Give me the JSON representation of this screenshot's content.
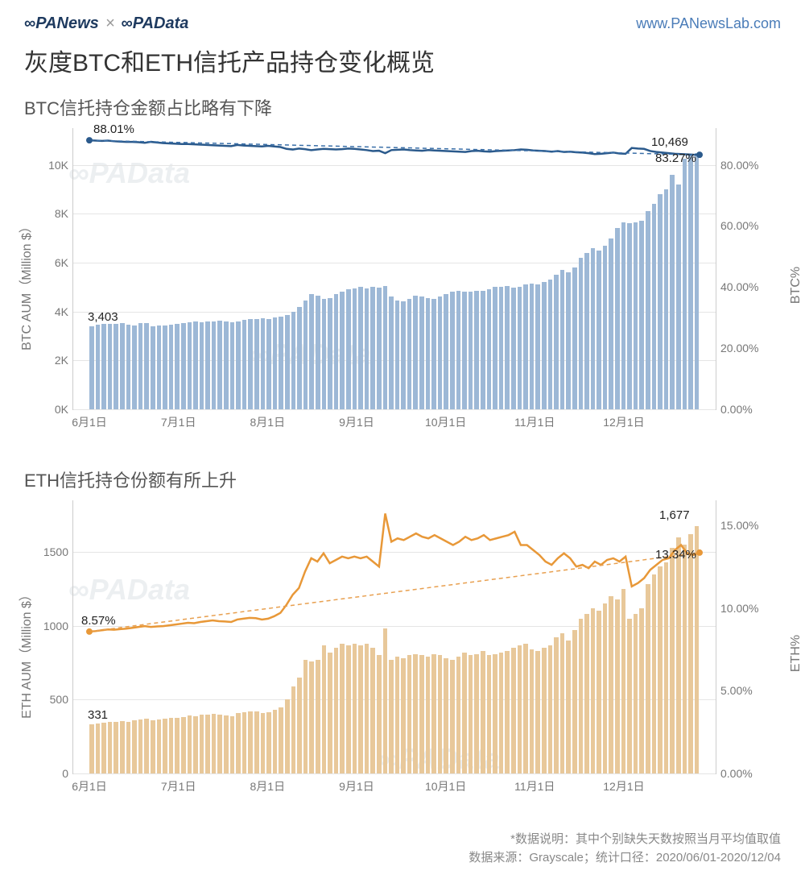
{
  "header": {
    "logo1": "∞PANews",
    "separator": "×",
    "logo2": "∞PAData",
    "url": "www.PANewsLab.com",
    "logo_color": "#1e3a5f",
    "url_color": "#4a7cb8"
  },
  "main_title": "灰度BTC和ETH信托产品持仓变化概览",
  "btc_chart": {
    "type": "bar+line",
    "subtitle": "BTC信托持仓金额占比略有下降",
    "y_left_label": "BTC AUM（Million $）",
    "y_right_label": "BTC%",
    "y_left_ticks": [
      "0K",
      "2K",
      "4K",
      "6K",
      "8K",
      "10K"
    ],
    "y_left_max": 11500,
    "y_right_ticks": [
      "0.00%",
      "20.00%",
      "40.00%",
      "60.00%",
      "80.00%"
    ],
    "y_right_max": 92,
    "x_ticks": [
      "6月1日",
      "7月1日",
      "8月1日",
      "9月1日",
      "10月1日",
      "11月1日",
      "12月1日"
    ],
    "bar_color": "#9db8d6",
    "line_color": "#2b5a8c",
    "trend_color": "#3a6fa8",
    "background_color": "#ffffff",
    "grid_color": "#e5e5e5",
    "line_width": 2.5,
    "bars": [
      3403,
      3450,
      3480,
      3500,
      3500,
      3520,
      3450,
      3420,
      3510,
      3530,
      3410,
      3430,
      3440,
      3460,
      3500,
      3520,
      3550,
      3580,
      3560,
      3590,
      3600,
      3620,
      3580,
      3550,
      3600,
      3650,
      3700,
      3680,
      3720,
      3680,
      3750,
      3780,
      3850,
      4000,
      4200,
      4450,
      4700,
      4650,
      4500,
      4550,
      4700,
      4800,
      4900,
      4950,
      5000,
      4950,
      5020,
      4980,
      5050,
      4600,
      4450,
      4400,
      4500,
      4650,
      4600,
      4550,
      4500,
      4630,
      4700,
      4800,
      4850,
      4820,
      4800,
      4830,
      4850,
      4900,
      5000,
      5020,
      5050,
      4980,
      5000,
      5100,
      5150,
      5100,
      5200,
      5300,
      5500,
      5700,
      5600,
      5800,
      6200,
      6400,
      6600,
      6500,
      6700,
      7000,
      7400,
      7650,
      7600,
      7650,
      7700,
      8100,
      8400,
      8800,
      9000,
      9600,
      9200,
      10250,
      10400,
      10469
    ],
    "line_pct": [
      88.01,
      87.9,
      87.8,
      87.9,
      87.7,
      87.6,
      87.5,
      87.5,
      87.4,
      87.2,
      87.5,
      87.3,
      87.1,
      87.0,
      86.9,
      86.8,
      86.8,
      86.7,
      86.6,
      86.5,
      86.4,
      86.3,
      86.2,
      86.1,
      86.5,
      86.3,
      86.2,
      86.1,
      86.0,
      86.2,
      86.0,
      85.8,
      85.2,
      85.0,
      85.3,
      85.1,
      84.8,
      85.0,
      85.2,
      85.1,
      85.0,
      85.1,
      85.3,
      85.2,
      85.0,
      84.8,
      84.5,
      84.6,
      83.8,
      84.8,
      84.9,
      85.0,
      84.8,
      84.7,
      84.6,
      84.8,
      84.7,
      84.6,
      84.5,
      84.4,
      84.3,
      84.2,
      84.5,
      84.6,
      84.4,
      84.3,
      84.5,
      84.6,
      84.7,
      84.8,
      85.0,
      84.9,
      84.7,
      84.6,
      84.5,
      84.3,
      84.5,
      84.2,
      84.3,
      84.1,
      84.0,
      83.8,
      83.5,
      83.6,
      83.8,
      84.0,
      83.7,
      83.6,
      85.5,
      85.3,
      85.2,
      84.5,
      84.2,
      84.0,
      83.8,
      83.6,
      83.5,
      83.4,
      83.3,
      83.27
    ],
    "annotations": {
      "start_pct": "88.01%",
      "end_pct": "83.27%",
      "start_bar": "3,403",
      "end_bar": "10,469"
    }
  },
  "eth_chart": {
    "type": "bar+line",
    "subtitle": "ETH信托持仓份额有所上升",
    "y_left_label": "ETH AUM（Million $）",
    "y_right_label": "ETH%",
    "y_left_ticks": [
      "0",
      "500",
      "1000",
      "1500"
    ],
    "y_left_max": 1850,
    "y_right_ticks": [
      "0.00%",
      "5.00%",
      "10.00%",
      "15.00%"
    ],
    "y_right_max": 16.5,
    "x_ticks": [
      "6月1日",
      "7月1日",
      "8月1日",
      "9月1日",
      "10月1日",
      "11月1日",
      "12月1日"
    ],
    "bar_color": "#e8c89a",
    "line_color": "#e89838",
    "trend_color": "#e8a050",
    "background_color": "#ffffff",
    "grid_color": "#e5e5e5",
    "line_width": 2.5,
    "bars": [
      331,
      340,
      345,
      350,
      348,
      355,
      352,
      358,
      365,
      370,
      360,
      365,
      370,
      375,
      378,
      382,
      395,
      390,
      398,
      400,
      405,
      400,
      395,
      390,
      408,
      415,
      420,
      418,
      410,
      415,
      430,
      450,
      500,
      590,
      650,
      770,
      760,
      770,
      870,
      820,
      850,
      880,
      870,
      880,
      870,
      880,
      850,
      800,
      980,
      770,
      790,
      780,
      800,
      810,
      800,
      790,
      810,
      800,
      780,
      770,
      790,
      820,
      800,
      810,
      830,
      800,
      810,
      820,
      830,
      850,
      870,
      880,
      840,
      830,
      850,
      870,
      920,
      950,
      900,
      970,
      1050,
      1080,
      1120,
      1100,
      1150,
      1200,
      1180,
      1250,
      1050,
      1080,
      1120,
      1280,
      1350,
      1400,
      1430,
      1530,
      1600,
      1550,
      1620,
      1677
    ],
    "line_pct": [
      8.57,
      8.6,
      8.65,
      8.7,
      8.68,
      8.72,
      8.75,
      8.8,
      8.85,
      8.9,
      8.85,
      8.88,
      8.9,
      8.95,
      9.0,
      9.05,
      9.1,
      9.08,
      9.15,
      9.2,
      9.25,
      9.2,
      9.18,
      9.15,
      9.3,
      9.35,
      9.4,
      9.38,
      9.3,
      9.35,
      9.5,
      9.7,
      10.2,
      10.8,
      11.2,
      12.2,
      13.0,
      12.8,
      13.3,
      12.7,
      12.9,
      13.1,
      13,
      13.1,
      13,
      13.1,
      12.8,
      12.5,
      15.7,
      14.0,
      14.2,
      14.1,
      14.3,
      14.5,
      14.3,
      14.2,
      14.4,
      14.2,
      14,
      13.8,
      14,
      14.3,
      14.1,
      14.2,
      14.4,
      14.1,
      14.2,
      14.3,
      14.4,
      14.6,
      13.8,
      13.8,
      13.5,
      13.2,
      12.8,
      12.6,
      13,
      13.3,
      13,
      12.5,
      12.6,
      12.4,
      12.8,
      12.6,
      12.9,
      13,
      12.8,
      13.1,
      11.3,
      11.5,
      11.8,
      12.3,
      12.6,
      12.9,
      13,
      13.5,
      13.8,
      13.3,
      13.2,
      13.34
    ],
    "annotations": {
      "start_pct": "8.57%",
      "end_pct": "13.34%",
      "start_bar": "331",
      "end_bar": "1,677"
    }
  },
  "footer": {
    "note": "*数据说明：其中个别缺失天数按照当月平均值取值",
    "source": "数据来源：Grayscale；统计口径：2020/06/01-2020/12/04"
  },
  "watermark": "∞PAData"
}
